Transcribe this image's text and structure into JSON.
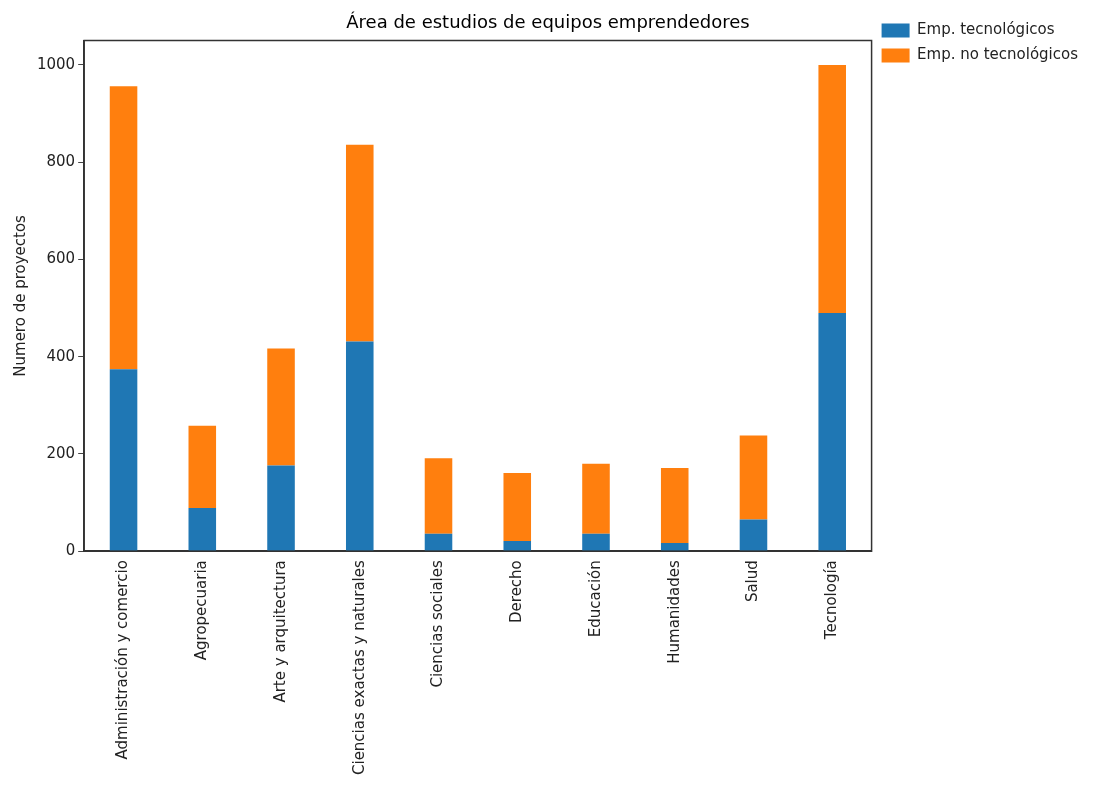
{
  "chart_data": {
    "type": "bar",
    "title": "Área de estudios de equipos emprendedores",
    "ylabel": "Numero de proyectos",
    "categories": [
      "Administración y comercio",
      "Agropecuaria",
      "Arte y arquitectura",
      "Ciencias exactas y naturales",
      "Ciencias sociales",
      "Derecho",
      "Educación",
      "Humanidades",
      "Salud",
      "Tecnología"
    ],
    "series": [
      {
        "name": "Emp. tecnológicos",
        "color": "#1f77b4",
        "values": [
          374,
          89,
          176,
          431,
          36,
          21,
          36,
          17,
          65,
          490
        ]
      },
      {
        "name": "Emp. no tecnológicos",
        "color": "#ff7f0e",
        "values": [
          582,
          169,
          241,
          405,
          155,
          140,
          144,
          154,
          173,
          510
        ]
      }
    ],
    "stacked": true,
    "ylim": [
      0,
      1050
    ],
    "yticks": [
      0,
      200,
      400,
      600,
      800,
      1000
    ],
    "grid": false,
    "legend": "top right"
  }
}
